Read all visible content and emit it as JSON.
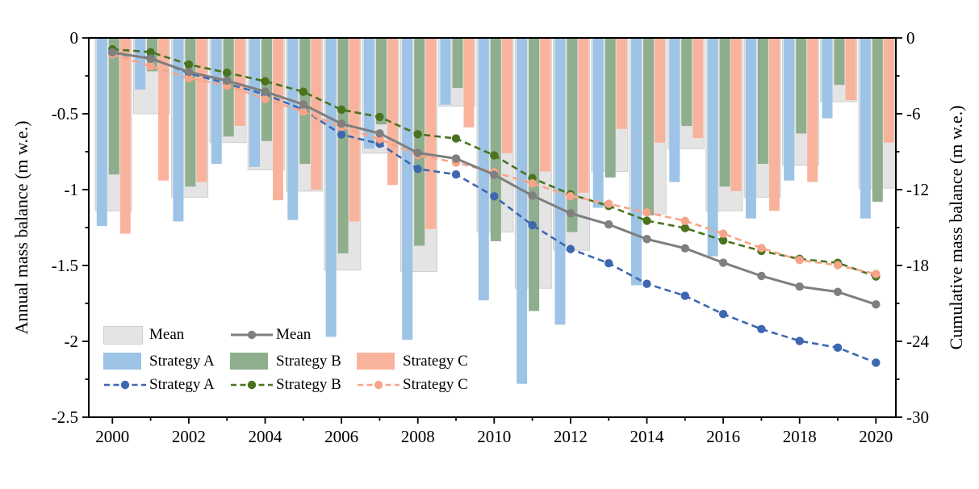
{
  "axes": {
    "left_title": "Annual mass balance (m w.e.)",
    "right_title": "Cumulative mass balance (m w.e.)",
    "x_tick_labels": [
      "2000",
      "2002",
      "2004",
      "2006",
      "2008",
      "2010",
      "2012",
      "2014",
      "2016",
      "2018",
      "2020"
    ],
    "left_tick_labels": [
      "0",
      "-0.5",
      "-1",
      "-1.5",
      "-2",
      "-2.5"
    ],
    "right_tick_labels": [
      "0",
      "-6",
      "-12",
      "-18",
      "-24",
      "-30"
    ]
  },
  "legend": {
    "mean_bar_label": "Mean",
    "mean_line_label": "Mean",
    "a_bar_label": "Strategy A",
    "b_bar_label": "Strategy B",
    "c_bar_label": "Strategy C",
    "a_line_label": "Strategy A",
    "b_line_label": "Strategy B",
    "c_line_label": "Strategy C"
  },
  "colors": {
    "bar_mean": "#E4E4E4",
    "bar_mean_border": "#CFCFCF",
    "bar_strategy_a": "#9DC3E6",
    "bar_strategy_b": "#8FAE8E",
    "bar_strategy_c": "#F9B39C",
    "line_mean": "#7F7F7F",
    "line_strategy_a": "#3D68B1",
    "line_strategy_b": "#4A731F",
    "line_strategy_c": "#F6A58A",
    "axis": "#000000"
  },
  "chart_data": {
    "type": "bar+line",
    "x": [
      2000,
      2001,
      2002,
      2003,
      2004,
      2005,
      2006,
      2007,
      2008,
      2009,
      2010,
      2011,
      2012,
      2013,
      2014,
      2015,
      2016,
      2017,
      2018,
      2019,
      2020
    ],
    "left_axis": {
      "label": "Annual mass balance (m w.e.)",
      "range": [
        0,
        -2.5
      ],
      "major_tick_step": 0.5,
      "minor_tick_step": 0.25,
      "applies_to": "bars"
    },
    "right_axis": {
      "label": "Cumulative mass balance (m w.e.)",
      "range": [
        0,
        -30
      ],
      "major_tick_step": 6,
      "minor_tick_step": 3,
      "applies_to": "lines"
    },
    "grid": "off",
    "legend_position": "inside lower-left",
    "bar_series": [
      {
        "key": "mean",
        "name": "Mean",
        "color": "#E4E4E4",
        "border": "#CFCFCF",
        "role": "mean",
        "values": [
          -1.14,
          -0.5,
          -1.05,
          -0.69,
          -0.87,
          -1.01,
          -1.53,
          -0.76,
          -1.54,
          -0.45,
          -1.28,
          -1.65,
          -1.4,
          -0.88,
          -1.16,
          -0.73,
          -1.14,
          -1.05,
          -0.84,
          -0.42,
          -0.99
        ]
      },
      {
        "key": "a",
        "name": "Strategy A",
        "color": "#9DC3E6",
        "values": [
          -1.24,
          -0.34,
          -1.21,
          -0.83,
          -0.85,
          -1.2,
          -1.97,
          -0.73,
          -1.99,
          -0.44,
          -1.73,
          -2.28,
          -1.89,
          -1.12,
          -1.63,
          -0.95,
          -1.44,
          -1.19,
          -0.94,
          -0.53,
          -1.19
        ]
      },
      {
        "key": "b",
        "name": "Strategy B",
        "color": "#8FAE8E",
        "values": [
          -0.9,
          -0.22,
          -0.98,
          -0.65,
          -0.68,
          -0.83,
          -1.42,
          -0.57,
          -1.37,
          -0.33,
          -1.34,
          -1.8,
          -1.28,
          -0.92,
          -1.17,
          -0.58,
          -0.98,
          -0.83,
          -0.63,
          -0.31,
          -1.08
        ]
      },
      {
        "key": "c",
        "name": "Strategy C",
        "color": "#F9B39C",
        "values": [
          -1.29,
          -0.94,
          -0.95,
          -0.58,
          -1.07,
          -1.0,
          -1.21,
          -0.97,
          -1.26,
          -0.59,
          -0.76,
          -0.88,
          -1.02,
          -0.6,
          -0.69,
          -0.66,
          -1.01,
          -1.14,
          -0.95,
          -0.41,
          -0.69
        ]
      }
    ],
    "line_series": [
      {
        "key": "a",
        "name": "Strategy A",
        "color": "#3D68B1",
        "dash": true,
        "values": [
          -1.24,
          -1.58,
          -2.79,
          -3.62,
          -4.47,
          -5.67,
          -7.64,
          -8.37,
          -10.36,
          -10.8,
          -12.53,
          -14.81,
          -16.7,
          -17.82,
          -19.45,
          -20.4,
          -21.84,
          -23.03,
          -23.97,
          -24.5,
          -25.69
        ]
      },
      {
        "key": "b",
        "name": "Strategy B",
        "color": "#4A731F",
        "dash": true,
        "values": [
          -0.9,
          -1.12,
          -2.1,
          -2.75,
          -3.43,
          -4.26,
          -5.68,
          -6.25,
          -7.62,
          -7.95,
          -9.29,
          -11.09,
          -12.37,
          -13.29,
          -14.46,
          -15.04,
          -16.02,
          -16.85,
          -17.48,
          -17.79,
          -18.87
        ]
      },
      {
        "key": "c",
        "name": "Strategy C",
        "color": "#F6A58A",
        "dash": true,
        "values": [
          -1.29,
          -2.23,
          -3.18,
          -3.76,
          -4.83,
          -5.83,
          -7.04,
          -8.01,
          -9.27,
          -9.86,
          -10.62,
          -11.5,
          -12.52,
          -13.12,
          -13.81,
          -14.47,
          -15.48,
          -16.62,
          -17.57,
          -17.98,
          -18.67
        ]
      },
      {
        "key": "mean",
        "name": "Mean",
        "color": "#7F7F7F",
        "dash": false,
        "values": [
          -1.14,
          -1.64,
          -2.69,
          -3.38,
          -4.25,
          -5.26,
          -6.79,
          -7.55,
          -9.09,
          -9.54,
          -10.82,
          -12.47,
          -13.87,
          -14.75,
          -15.91,
          -16.64,
          -17.78,
          -18.83,
          -19.67,
          -20.09,
          -21.08
        ]
      }
    ]
  }
}
